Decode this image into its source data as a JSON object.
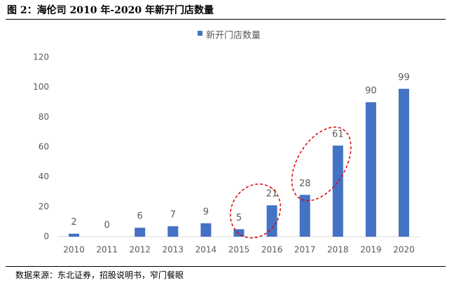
{
  "figure": {
    "title": "图 2：海伦司 2010 年-2020 年新开门店数量",
    "source": "数据来源：东北证券，招股说明书，窄门餐眼"
  },
  "chart_data": {
    "type": "bar",
    "title": "",
    "legend": [
      "新开门店数量"
    ],
    "legend_position": "top",
    "categories": [
      "2010",
      "2011",
      "2012",
      "2013",
      "2014",
      "2015",
      "2016",
      "2017",
      "2018",
      "2019",
      "2020"
    ],
    "series": [
      {
        "name": "新开门店数量",
        "values": [
          2,
          0,
          6,
          7,
          9,
          5,
          21,
          28,
          61,
          90,
          99
        ]
      }
    ],
    "data_labels": [
      "2",
      "0",
      "6",
      "7",
      "9",
      "5",
      "21",
      "28",
      "61",
      "90",
      "99"
    ],
    "yticks": [
      0,
      20,
      40,
      60,
      80,
      100,
      120
    ],
    "ylim": [
      0,
      120
    ],
    "grid": false,
    "xlabel": "",
    "ylabel": "",
    "annotations": [
      {
        "type": "dashed-ellipse",
        "around": [
          "2015",
          "2016"
        ]
      },
      {
        "type": "dashed-ellipse",
        "around": [
          "2017",
          "2018"
        ]
      }
    ],
    "colors": {
      "bar": "#4472C4",
      "annotation": "#E00000",
      "axis": "#D9D9D9",
      "text": "#595959"
    }
  }
}
